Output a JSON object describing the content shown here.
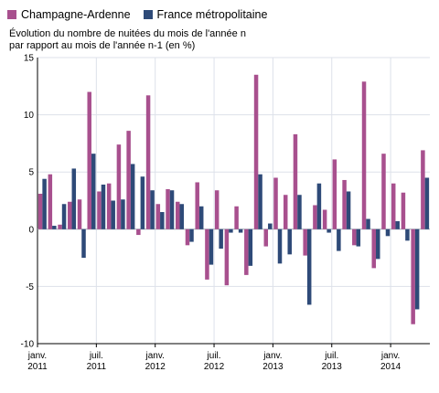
{
  "chart_data": {
    "type": "bar",
    "title": "",
    "ylabel": [
      "Évolution du nombre de nuitées du mois de l'année n",
      "par rapport au mois de l'année n-1 (en %)"
    ],
    "xlabel": "",
    "ylim": [
      -10,
      15
    ],
    "yticks": [
      -10,
      -5,
      0,
      5,
      10,
      15
    ],
    "x_tick_labels": [
      {
        "index": 0,
        "line1": "janv.",
        "line2": "2011"
      },
      {
        "index": 6,
        "line1": "juil.",
        "line2": "2011"
      },
      {
        "index": 12,
        "line1": "janv.",
        "line2": "2012"
      },
      {
        "index": 18,
        "line1": "juil.",
        "line2": "2012"
      },
      {
        "index": 24,
        "line1": "janv.",
        "line2": "2013"
      },
      {
        "index": 30,
        "line1": "juil.",
        "line2": "2013"
      },
      {
        "index": 36,
        "line1": "janv.",
        "line2": "2014"
      }
    ],
    "categories": [
      "2011-01",
      "2011-02",
      "2011-03",
      "2011-04",
      "2011-05",
      "2011-06",
      "2011-07",
      "2011-08",
      "2011-09",
      "2011-10",
      "2011-11",
      "2011-12",
      "2012-01",
      "2012-02",
      "2012-03",
      "2012-04",
      "2012-05",
      "2012-06",
      "2012-07",
      "2012-08",
      "2012-09",
      "2012-10",
      "2012-11",
      "2012-12",
      "2013-01",
      "2013-02",
      "2013-03",
      "2013-04",
      "2013-05",
      "2013-06",
      "2013-07",
      "2013-08",
      "2013-09",
      "2013-10",
      "2013-11",
      "2013-12",
      "2014-01",
      "2014-02",
      "2014-03",
      "2014-04"
    ],
    "series": [
      {
        "name": "Champagne-Ardenne",
        "color": "#a8508e",
        "values": [
          3.1,
          4.8,
          0.4,
          2.4,
          2.6,
          12.0,
          3.3,
          4.0,
          7.4,
          8.6,
          -0.5,
          11.7,
          2.2,
          3.5,
          2.4,
          -1.4,
          4.1,
          -4.4,
          3.4,
          -4.9,
          2.0,
          -4.0,
          13.5,
          -1.5,
          4.5,
          3.0,
          8.3,
          -2.3,
          2.1,
          1.7,
          6.1,
          4.3,
          -1.4,
          12.9,
          -3.4,
          6.6,
          4.0,
          3.2,
          -8.3,
          6.9
        ]
      },
      {
        "name": "France métropolitaine",
        "color": "#2e4a78",
        "values": [
          4.4,
          0.3,
          2.2,
          5.3,
          -2.5,
          6.6,
          3.9,
          2.5,
          2.6,
          5.7,
          4.6,
          3.4,
          1.5,
          3.4,
          2.2,
          -1.1,
          2.0,
          -3.1,
          -1.7,
          -0.3,
          -0.3,
          -3.2,
          4.8,
          0.5,
          -3.0,
          -2.2,
          3.0,
          -6.6,
          4.0,
          -0.3,
          -1.9,
          3.3,
          -1.5,
          0.9,
          -2.6,
          -0.6,
          0.7,
          -1.0,
          -7.0,
          4.5
        ]
      }
    ],
    "grid": true,
    "legend_position": "top-left"
  }
}
